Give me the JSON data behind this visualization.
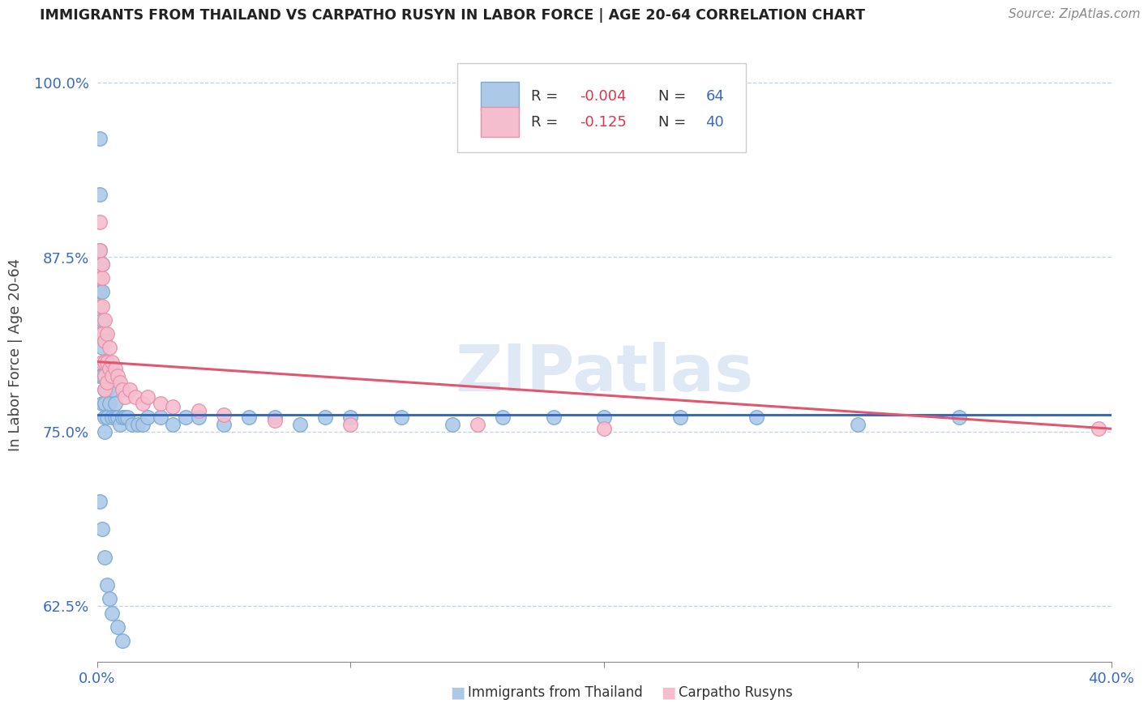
{
  "title": "IMMIGRANTS FROM THAILAND VS CARPATHO RUSYN IN LABOR FORCE | AGE 20-64 CORRELATION CHART",
  "source": "Source: ZipAtlas.com",
  "ylabel": "In Labor Force | Age 20-64",
  "xlim": [
    0.0,
    0.4
  ],
  "ylim": [
    0.585,
    1.025
  ],
  "yticks": [
    0.625,
    0.75,
    0.875,
    1.0
  ],
  "ytick_labels": [
    "62.5%",
    "75.0%",
    "87.5%",
    "100.0%"
  ],
  "xticks": [
    0.0,
    0.1,
    0.2,
    0.3,
    0.4
  ],
  "xtick_labels": [
    "0.0%",
    "",
    "",
    "",
    "40.0%"
  ],
  "series1_color": "#adc9e8",
  "series1_edge": "#7aaad4",
  "series2_color": "#f5bece",
  "series2_edge": "#e890a8",
  "line1_color": "#3a6abf",
  "line2_color": "#e05870",
  "watermark": "ZIPatlas",
  "title_color": "#222222",
  "r_value_color": "#e0334d",
  "n_value_color": "#3a6abf",
  "thailand_x": [
    0.001,
    0.001,
    0.001,
    0.001,
    0.001,
    0.001,
    0.002,
    0.002,
    0.002,
    0.002,
    0.002,
    0.002,
    0.003,
    0.003,
    0.003,
    0.003,
    0.003,
    0.003,
    0.003,
    0.004,
    0.004,
    0.004,
    0.005,
    0.005,
    0.006,
    0.006,
    0.007,
    0.007,
    0.008,
    0.009,
    0.01,
    0.011,
    0.012,
    0.014,
    0.016,
    0.018,
    0.02,
    0.025,
    0.03,
    0.035,
    0.04,
    0.05,
    0.06,
    0.07,
    0.08,
    0.09,
    0.1,
    0.12,
    0.14,
    0.16,
    0.18,
    0.2,
    0.23,
    0.26,
    0.3,
    0.34,
    0.001,
    0.002,
    0.003,
    0.004,
    0.005,
    0.006,
    0.008,
    0.01
  ],
  "thailand_y": [
    0.96,
    0.92,
    0.88,
    0.85,
    0.82,
    0.79,
    0.87,
    0.85,
    0.83,
    0.81,
    0.79,
    0.77,
    0.82,
    0.8,
    0.79,
    0.78,
    0.77,
    0.76,
    0.75,
    0.8,
    0.78,
    0.76,
    0.79,
    0.77,
    0.78,
    0.76,
    0.77,
    0.76,
    0.76,
    0.755,
    0.76,
    0.76,
    0.76,
    0.755,
    0.755,
    0.755,
    0.76,
    0.76,
    0.755,
    0.76,
    0.76,
    0.755,
    0.76,
    0.76,
    0.755,
    0.76,
    0.76,
    0.76,
    0.755,
    0.76,
    0.76,
    0.76,
    0.76,
    0.76,
    0.755,
    0.76,
    0.7,
    0.68,
    0.66,
    0.64,
    0.63,
    0.62,
    0.61,
    0.6
  ],
  "rusyn_x": [
    0.001,
    0.001,
    0.001,
    0.001,
    0.002,
    0.002,
    0.002,
    0.002,
    0.003,
    0.003,
    0.003,
    0.003,
    0.003,
    0.004,
    0.004,
    0.004,
    0.005,
    0.005,
    0.006,
    0.006,
    0.007,
    0.008,
    0.009,
    0.01,
    0.011,
    0.013,
    0.015,
    0.018,
    0.02,
    0.025,
    0.03,
    0.04,
    0.05,
    0.07,
    0.1,
    0.15,
    0.2,
    0.001,
    0.002,
    0.395
  ],
  "rusyn_y": [
    0.88,
    0.86,
    0.84,
    0.82,
    0.86,
    0.84,
    0.82,
    0.8,
    0.83,
    0.815,
    0.8,
    0.79,
    0.78,
    0.82,
    0.8,
    0.785,
    0.81,
    0.795,
    0.8,
    0.79,
    0.795,
    0.79,
    0.785,
    0.78,
    0.775,
    0.78,
    0.775,
    0.77,
    0.775,
    0.77,
    0.768,
    0.765,
    0.762,
    0.758,
    0.755,
    0.755,
    0.752,
    0.9,
    0.87,
    0.752
  ],
  "line1_x0": 0.0,
  "line1_y0": 0.762,
  "line1_x1": 0.4,
  "line1_y1": 0.762,
  "line2_x0": 0.0,
  "line2_y0": 0.8,
  "line2_x1": 0.4,
  "line2_y1": 0.752
}
